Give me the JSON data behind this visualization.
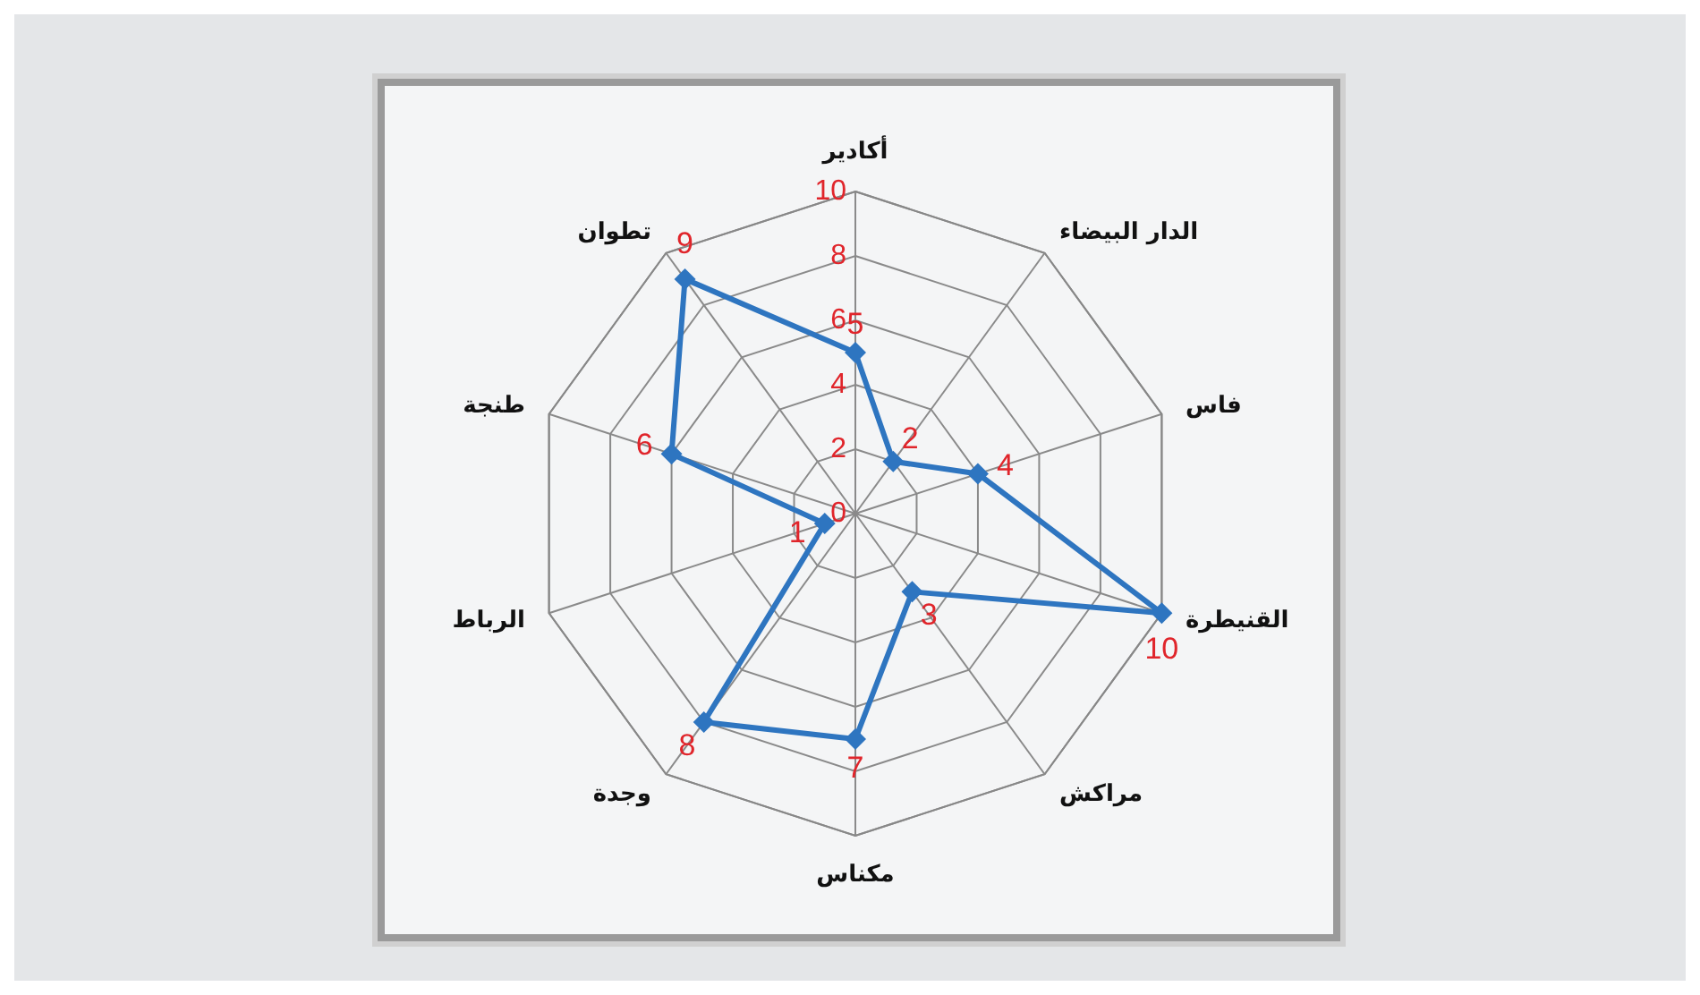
{
  "chart_data": {
    "type": "radar",
    "categories": [
      "أكادير",
      "الدار البيضاء",
      "فاس",
      "القنيطرة",
      "مراكش",
      "مكناس",
      "وجدة",
      "الرباط",
      "طنجة",
      "تطوان"
    ],
    "series": [
      {
        "color": "#2e75c0",
        "values": [
          5,
          2,
          4,
          10,
          3,
          7,
          8,
          1,
          6,
          9
        ]
      }
    ],
    "ylim": [
      0,
      10
    ],
    "yticks": [
      0,
      2,
      4,
      6,
      8,
      10
    ],
    "grid": true,
    "marker": "diamond",
    "data_labels": true,
    "legend": false
  }
}
